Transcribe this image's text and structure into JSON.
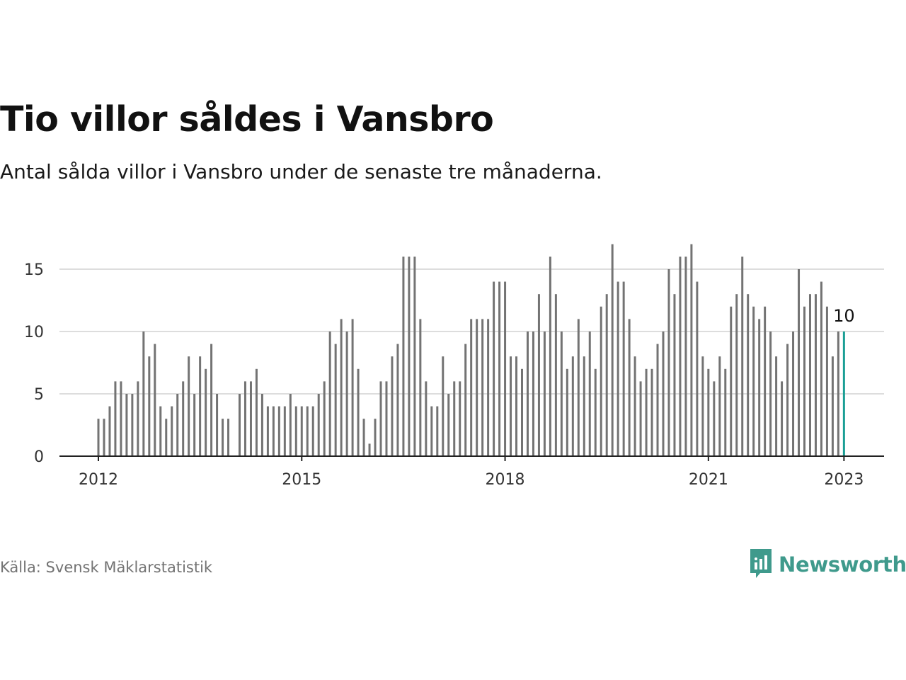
{
  "title": "Tio villor såldes i Vansbro",
  "subtitle": "Antal sålda villor i Vansbro under de senaste tre månaderna.",
  "source": "Källa: Svensk Mäklarstatistik",
  "brand": {
    "name": "Newsworthy",
    "color": "#3f9a8c",
    "icon": "newsworthy-logo-icon"
  },
  "chart_data": {
    "type": "bar",
    "x_start": "2012-01",
    "x_tick_labels": [
      "2012",
      "2015",
      "2018",
      "2021",
      "2023"
    ],
    "y_ticks": [
      0,
      5,
      10,
      15
    ],
    "ylim": [
      0,
      17
    ],
    "grid": true,
    "bar_color": "#737373",
    "highlight_color": "#1a9e95",
    "annotation": {
      "text": "10",
      "target": "last"
    },
    "values": [
      3,
      3,
      4,
      6,
      6,
      5,
      5,
      6,
      10,
      8,
      9,
      4,
      3,
      4,
      5,
      6,
      8,
      5,
      8,
      7,
      9,
      5,
      3,
      3,
      null,
      5,
      6,
      6,
      7,
      5,
      4,
      4,
      4,
      4,
      5,
      4,
      4,
      4,
      4,
      5,
      6,
      10,
      9,
      11,
      10,
      11,
      7,
      3,
      1,
      3,
      6,
      6,
      8,
      9,
      16,
      16,
      16,
      11,
      6,
      4,
      4,
      8,
      5,
      6,
      6,
      9,
      11,
      11,
      11,
      11,
      14,
      14,
      14,
      8,
      8,
      7,
      10,
      10,
      13,
      10,
      16,
      13,
      10,
      7,
      8,
      11,
      8,
      10,
      7,
      12,
      13,
      17,
      14,
      14,
      11,
      8,
      6,
      7,
      7,
      9,
      10,
      15,
      13,
      16,
      16,
      17,
      14,
      8,
      7,
      6,
      8,
      7,
      12,
      13,
      16,
      13,
      12,
      11,
      12,
      10,
      8,
      6,
      9,
      10,
      15,
      12,
      13,
      13,
      14,
      12,
      8,
      10,
      10
    ]
  }
}
